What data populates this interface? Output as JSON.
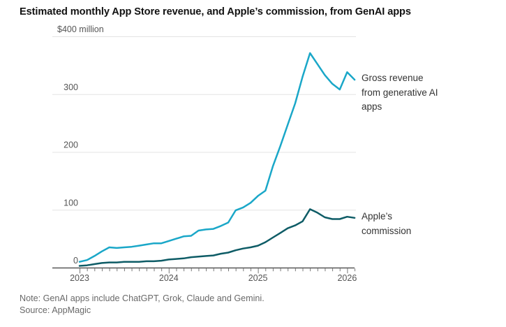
{
  "header": {
    "title": "Estimated monthly App Store revenue, and Apple’s commission, from GenAI apps"
  },
  "annotations": {
    "gross": "Gross revenue from generative AI apps",
    "commission": "Apple’s commission"
  },
  "footer": {
    "note": "Note: GenAI apps include ChatGPT, Grok, Claude and Gemini.",
    "source": "Source: AppMagic"
  },
  "chart_data": {
    "type": "line",
    "title": "Estimated monthly App Store revenue, and Apple’s commission, from GenAI apps",
    "unit": "$ million",
    "ylim": [
      0,
      400
    ],
    "grid": "horizontal",
    "legend_position": "right-of-line-ends",
    "y_ticks": [
      0,
      100,
      200,
      300,
      400
    ],
    "y_tick_labels": [
      "0",
      "100",
      "200",
      "300",
      "$400 million"
    ],
    "x_tick_years": [
      "2023",
      "2024",
      "2025",
      "2026"
    ],
    "x": [
      "2023-01",
      "2023-02",
      "2023-03",
      "2023-04",
      "2023-05",
      "2023-06",
      "2023-07",
      "2023-08",
      "2023-09",
      "2023-10",
      "2023-11",
      "2023-12",
      "2024-01",
      "2024-02",
      "2024-03",
      "2024-04",
      "2024-05",
      "2024-06",
      "2024-07",
      "2024-08",
      "2024-09",
      "2024-10",
      "2024-11",
      "2024-12",
      "2025-01",
      "2025-02",
      "2025-03",
      "2025-04",
      "2025-05",
      "2025-06",
      "2025-07",
      "2025-08",
      "2025-09",
      "2025-10",
      "2025-11",
      "2025-12",
      "2026-01",
      "2026-02"
    ],
    "series": [
      {
        "id": "gross-revenue",
        "name": "Gross revenue from generative AI apps",
        "color": "#1aa7c8",
        "values": [
          10,
          13,
          20,
          28,
          35,
          34,
          35,
          36,
          38,
          40,
          42,
          42,
          46,
          50,
          54,
          55,
          64,
          66,
          67,
          72,
          78,
          99,
          104,
          112,
          124,
          133,
          175,
          210,
          247,
          284,
          330,
          371,
          352,
          333,
          318,
          308,
          338,
          325
        ]
      },
      {
        "id": "apple-commission",
        "name": "Apple’s commission",
        "color": "#0e5c66",
        "values": [
          3,
          4,
          6,
          8,
          9,
          9,
          10,
          10,
          10,
          11,
          11,
          12,
          14,
          15,
          16,
          18,
          19,
          20,
          21,
          24,
          26,
          30,
          33,
          35,
          38,
          44,
          52,
          60,
          68,
          73,
          80,
          101,
          95,
          87,
          84,
          84,
          88,
          86
        ]
      }
    ],
    "colors": {
      "grid": "#e3e3e3",
      "axis": "#3f3f3f",
      "tick": "#777777",
      "tick_label": "#555555"
    }
  }
}
